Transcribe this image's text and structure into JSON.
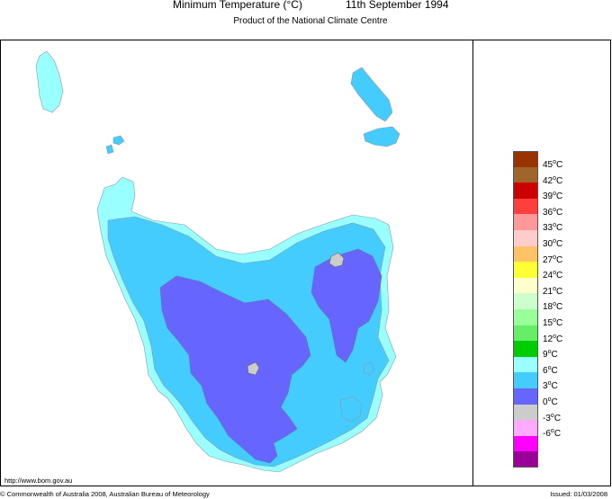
{
  "header": {
    "title": "Minimum Temperature (°C)",
    "date": "11th September 1994",
    "subtitle": "Product of the National Climate Centre"
  },
  "footer": {
    "url": "http://www.bom.gov.au",
    "copyright": "© Commonwealth of Australia 2008, Australian Bureau of Meteorology",
    "issued": "Issued: 01/03/2008"
  },
  "legend": {
    "items": [
      {
        "label": "45",
        "color": "#993300"
      },
      {
        "label": "42",
        "color": "#a0652a"
      },
      {
        "label": "39",
        "color": "#cc0000"
      },
      {
        "label": "36",
        "color": "#ff3e3e"
      },
      {
        "label": "33",
        "color": "#ff9999"
      },
      {
        "label": "30",
        "color": "#ffcccc"
      },
      {
        "label": "27",
        "color": "#ffc266"
      },
      {
        "label": "24",
        "color": "#ffff33"
      },
      {
        "label": "21",
        "color": "#ffffcc"
      },
      {
        "label": "18",
        "color": "#ccffcc"
      },
      {
        "label": "15",
        "color": "#99ff99"
      },
      {
        "label": "12",
        "color": "#66ee66"
      },
      {
        "label": "9",
        "color": "#00cc00"
      },
      {
        "label": "6",
        "color": "#99ffff"
      },
      {
        "label": "3",
        "color": "#44ccff"
      },
      {
        "label": "0",
        "color": "#6666ff"
      },
      {
        "label": "-3",
        "color": "#cccccc"
      },
      {
        "label": "-6",
        "color": "#ffaaff"
      },
      {
        "label": "",
        "color": "#ff00ff"
      },
      {
        "label": "",
        "color": "#990099"
      }
    ],
    "unit": "C"
  },
  "map_colors": {
    "zone_9_12": "#99ffff",
    "zone_6_9": "#44ccff",
    "zone_3_6": "#6666ff",
    "zone_0_3": "#cccccc"
  }
}
